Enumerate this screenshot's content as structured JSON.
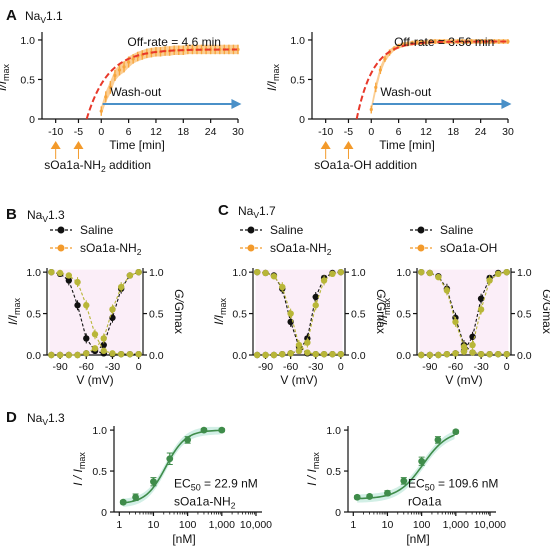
{
  "chart_data": [
    {
      "panel": "A",
      "title": "NaV1.1",
      "type": "line",
      "xlabel": "Time [min]",
      "ylabel": "I/Imax",
      "xticks": [
        -10,
        -5,
        0,
        6,
        12,
        18,
        24,
        30
      ],
      "yticks": [
        0,
        0.5,
        1.0
      ],
      "xlim": [
        -13,
        30
      ],
      "ylim": [
        0,
        1.05
      ],
      "annotation": "Off-rate = 4.6 min",
      "arrow_label": "Wash-out",
      "addition_label": "sOa1a-NH2 addition",
      "addition_times": [
        -10,
        -5
      ],
      "fit": {
        "plateau": 0.88,
        "tau": 4.6
      },
      "series": [
        {
          "name": "data",
          "x": [
            0,
            1,
            2,
            3,
            4,
            5,
            6,
            7,
            8,
            9,
            10,
            11,
            12,
            13,
            14,
            15,
            16,
            17,
            18,
            19,
            20,
            21,
            22,
            23,
            24,
            25,
            26,
            27,
            28,
            29,
            30
          ],
          "y": [
            0.1,
            0.28,
            0.4,
            0.55,
            0.62,
            0.66,
            0.72,
            0.76,
            0.79,
            0.81,
            0.83,
            0.84,
            0.85,
            0.85,
            0.86,
            0.86,
            0.87,
            0.87,
            0.87,
            0.88,
            0.88,
            0.88,
            0.88,
            0.88,
            0.88,
            0.88,
            0.88,
            0.88,
            0.88,
            0.88,
            0.88
          ],
          "err": [
            0.06,
            0.07,
            0.08,
            0.07,
            0.07,
            0.07,
            0.07,
            0.06,
            0.06,
            0.06,
            0.06,
            0.06,
            0.06,
            0.06,
            0.06,
            0.06,
            0.06,
            0.06,
            0.06,
            0.06,
            0.06,
            0.06,
            0.06,
            0.06,
            0.06,
            0.06,
            0.06,
            0.06,
            0.06,
            0.06,
            0.06
          ]
        }
      ]
    },
    {
      "panel": "A",
      "title": "",
      "type": "line",
      "xlabel": "Time [min]",
      "ylabel": "I/Imax",
      "xticks": [
        -10,
        -5,
        0,
        6,
        12,
        18,
        24,
        30
      ],
      "yticks": [
        0,
        0.5,
        1.0
      ],
      "xlim": [
        -13,
        30
      ],
      "ylim": [
        0,
        1.05
      ],
      "annotation": "Off-rate = 3.56 min",
      "arrow_label": "Wash-out",
      "addition_label": "sOa1a-OH addition",
      "addition_times": [
        -10,
        -5
      ],
      "fit": {
        "plateau": 0.98,
        "tau": 3.56
      },
      "series": [
        {
          "name": "data",
          "x": [
            0,
            1,
            2,
            3,
            4,
            5,
            6,
            7,
            8,
            9,
            10,
            11,
            12,
            13,
            14,
            15,
            16,
            17,
            18,
            19,
            20,
            21,
            22,
            23,
            24,
            25,
            26,
            27,
            28,
            29,
            30
          ],
          "y": [
            0.12,
            0.4,
            0.62,
            0.76,
            0.84,
            0.89,
            0.92,
            0.94,
            0.95,
            0.96,
            0.97,
            0.97,
            0.97,
            0.98,
            0.98,
            0.98,
            0.98,
            0.98,
            0.98,
            0.98,
            0.98,
            0.98,
            0.98,
            0.98,
            0.98,
            0.98,
            0.98,
            0.98,
            0.98,
            0.98,
            0.98
          ],
          "err": [
            0.05,
            0.06,
            0.05,
            0.04,
            0.04,
            0.03,
            0.03,
            0.03,
            0.03,
            0.03,
            0.03,
            0.03,
            0.03,
            0.03,
            0.03,
            0.03,
            0.03,
            0.03,
            0.03,
            0.03,
            0.03,
            0.03,
            0.03,
            0.03,
            0.03,
            0.03,
            0.03,
            0.03,
            0.03,
            0.03,
            0.03
          ]
        }
      ]
    },
    {
      "panel": "B",
      "title": "NaV1.3",
      "type": "line",
      "xlabel": "V (mV)",
      "ylabel": "I/Imax",
      "y2label": "G/Gmax",
      "xticks": [
        -90,
        -60,
        -30,
        0
      ],
      "yticks": [
        0,
        0.5,
        1.0
      ],
      "xlim": [
        -105,
        5
      ],
      "ylim": [
        0,
        1.05
      ],
      "series": [
        {
          "name": "Saline",
          "color": "#111111",
          "curve": "inact",
          "v": [
            -100,
            -90,
            -80,
            -70,
            -60,
            -50,
            -40,
            -30,
            -20,
            -10,
            0
          ],
          "y": [
            1.0,
            0.98,
            0.9,
            0.6,
            0.2,
            0.05,
            0.02,
            0.01,
            0.01,
            0.01,
            0.01
          ]
        },
        {
          "name": "Saline",
          "color": "#111111",
          "curve": "act",
          "v": [
            -100,
            -90,
            -80,
            -70,
            -60,
            -50,
            -40,
            -30,
            -20,
            -10,
            0
          ],
          "y": [
            0.0,
            0.0,
            0.0,
            0.0,
            0.02,
            0.05,
            0.12,
            0.45,
            0.8,
            0.96,
            1.0
          ]
        },
        {
          "name": "sOa1a-NH2",
          "color": "#b8b638",
          "curve": "inact",
          "v": [
            -100,
            -90,
            -80,
            -70,
            -60,
            -50,
            -40,
            -30,
            -20,
            -10,
            0
          ],
          "y": [
            1.0,
            0.99,
            0.96,
            0.88,
            0.6,
            0.25,
            0.05,
            0.02,
            0.01,
            0.01,
            0.01
          ]
        },
        {
          "name": "sOa1a-NH2",
          "color": "#b8b638",
          "curve": "act",
          "v": [
            -100,
            -90,
            -80,
            -70,
            -60,
            -50,
            -40,
            -30,
            -20,
            -10,
            0
          ],
          "y": [
            0.0,
            0.0,
            0.0,
            0.0,
            0.02,
            0.08,
            0.2,
            0.55,
            0.82,
            0.96,
            1.0
          ]
        }
      ]
    },
    {
      "panel": "C",
      "title": "NaV1.7",
      "type": "line",
      "xlabel": "V (mV)",
      "ylabel": "I/Imax",
      "y2label": "G/Gmax",
      "xticks": [
        -90,
        -60,
        -30,
        0
      ],
      "yticks": [
        0,
        0.5,
        1.0
      ],
      "xlim": [
        -105,
        5
      ],
      "ylim": [
        0,
        1.05
      ],
      "series": [
        {
          "name": "Saline",
          "color": "#111111",
          "curve": "inact",
          "v": [
            -100,
            -90,
            -80,
            -70,
            -60,
            -50,
            -40,
            -30,
            -20,
            -10,
            0
          ],
          "y": [
            1.0,
            0.99,
            0.96,
            0.8,
            0.4,
            0.1,
            0.02,
            0.01,
            0.01,
            0.01,
            0.01
          ]
        },
        {
          "name": "Saline",
          "color": "#111111",
          "curve": "act",
          "v": [
            -100,
            -90,
            -80,
            -70,
            -60,
            -50,
            -40,
            -30,
            -20,
            -10,
            0
          ],
          "y": [
            0.0,
            0.0,
            0.0,
            0.01,
            0.02,
            0.05,
            0.2,
            0.7,
            0.93,
            0.99,
            1.0
          ]
        },
        {
          "name": "sOa1a-NH2",
          "color": "#b8b638",
          "curve": "inact",
          "v": [
            -100,
            -90,
            -80,
            -70,
            -60,
            -50,
            -40,
            -30,
            -20,
            -10,
            0
          ],
          "y": [
            1.0,
            0.99,
            0.95,
            0.82,
            0.5,
            0.12,
            0.03,
            0.01,
            0.01,
            0.01,
            0.01
          ]
        },
        {
          "name": "sOa1a-NH2",
          "color": "#b8b638",
          "curve": "act",
          "v": [
            -100,
            -90,
            -80,
            -70,
            -60,
            -50,
            -40,
            -30,
            -20,
            -10,
            0
          ],
          "y": [
            0.0,
            0.0,
            0.0,
            0.01,
            0.02,
            0.05,
            0.15,
            0.6,
            0.9,
            0.98,
            1.0
          ]
        }
      ]
    },
    {
      "panel": "C",
      "title": "",
      "type": "line",
      "xlabel": "V (mV)",
      "ylabel": "I/Imax",
      "y2label": "G/Gmax",
      "xticks": [
        -90,
        -60,
        -30,
        0
      ],
      "yticks": [
        0,
        0.5,
        1.0
      ],
      "xlim": [
        -105,
        5
      ],
      "ylim": [
        0,
        1.05
      ],
      "series": [
        {
          "name": "Saline",
          "color": "#111111",
          "curve": "inact",
          "v": [
            -100,
            -90,
            -80,
            -70,
            -60,
            -50,
            -40,
            -30,
            -20,
            -10,
            0
          ],
          "y": [
            1.0,
            0.99,
            0.95,
            0.8,
            0.45,
            0.12,
            0.03,
            0.01,
            0.01,
            0.01,
            0.01
          ]
        },
        {
          "name": "Saline",
          "color": "#111111",
          "curve": "act",
          "v": [
            -100,
            -90,
            -80,
            -70,
            -60,
            -50,
            -40,
            -30,
            -20,
            -10,
            0
          ],
          "y": [
            0.0,
            0.0,
            0.0,
            0.01,
            0.02,
            0.05,
            0.22,
            0.68,
            0.93,
            0.99,
            1.0
          ]
        },
        {
          "name": "sOa1a-OH",
          "color": "#b8b638",
          "curve": "inact",
          "v": [
            -100,
            -90,
            -80,
            -70,
            -60,
            -50,
            -40,
            -30,
            -20,
            -10,
            0
          ],
          "y": [
            1.0,
            0.99,
            0.94,
            0.78,
            0.4,
            0.1,
            0.03,
            0.01,
            0.01,
            0.01,
            0.01
          ]
        },
        {
          "name": "sOa1a-OH",
          "color": "#b8b638",
          "curve": "act",
          "v": [
            -100,
            -90,
            -80,
            -70,
            -60,
            -50,
            -40,
            -30,
            -20,
            -10,
            0
          ],
          "y": [
            0.0,
            0.0,
            0.0,
            0.01,
            0.02,
            0.04,
            0.12,
            0.55,
            0.9,
            0.98,
            1.0
          ]
        }
      ]
    },
    {
      "panel": "D",
      "title": "NaV1.3",
      "type": "scatter",
      "xlabel": "[nM]",
      "ylabel": "I / Imax",
      "xscale": "log",
      "xticks": [
        1,
        10,
        100,
        1000,
        10000
      ],
      "xticklabels": [
        "1",
        "10",
        "100",
        "1,000",
        "10,000"
      ],
      "yticks": [
        0,
        0.5,
        1.0
      ],
      "xlim": [
        0.7,
        15000
      ],
      "ylim": [
        0,
        1.05
      ],
      "ec50": 22.9,
      "hill": 1.5,
      "ec50_label": "EC50 = 22.9 nM",
      "compound": "sOa1a-NH2",
      "series": [
        {
          "name": "data",
          "x": [
            1.3,
            3,
            10,
            30,
            100,
            300,
            1000
          ],
          "y": [
            0.12,
            0.18,
            0.37,
            0.65,
            0.88,
            1.0,
            1.0
          ],
          "err": [
            0.02,
            0.04,
            0.05,
            0.07,
            0.04,
            0.02,
            0.02
          ]
        }
      ]
    },
    {
      "panel": "D",
      "title": "",
      "type": "scatter",
      "xlabel": "[nM]",
      "ylabel": "I / Imax",
      "xscale": "log",
      "xticks": [
        1,
        10,
        100,
        1000,
        10000
      ],
      "xticklabels": [
        "1",
        "10",
        "100",
        "1,000",
        "10,000"
      ],
      "yticks": [
        0,
        0.5,
        1.0
      ],
      "xlim": [
        0.7,
        15000
      ],
      "ylim": [
        0,
        1.05
      ],
      "ec50": 109.6,
      "hill": 1.2,
      "ec50_label": "EC50 = 109.6 nM",
      "compound": "rOa1a",
      "series": [
        {
          "name": "data",
          "x": [
            1.3,
            3,
            10,
            30,
            100,
            300,
            1000
          ],
          "y": [
            0.18,
            0.19,
            0.23,
            0.38,
            0.62,
            0.88,
            0.98
          ],
          "err": [
            0.02,
            0.02,
            0.03,
            0.04,
            0.05,
            0.04,
            0.02
          ]
        }
      ]
    }
  ],
  "labels": {
    "panelA": "A",
    "panelB": "B",
    "panelC": "C",
    "panelD": "D",
    "nav11": "Na",
    "nav11sub": "V",
    "nav11num": "1.1",
    "nav13": "Na",
    "nav13sub": "V",
    "nav13num": "1.3",
    "nav17": "Na",
    "nav17sub": "V",
    "nav17num": "1.7",
    "navD": "Na",
    "navDsub": "V",
    "navDnum": "1.3",
    "saline": "Saline",
    "nh2": "sOa1a-NH",
    "nh2sub": "2",
    "oh": "sOa1a-OH"
  },
  "colors": {
    "fit_red": "#e8382a",
    "band_orange": "#f7a53d",
    "wash_blue": "#4a90c8",
    "triangle": "#f39a2b",
    "saline": "#111111",
    "toxin": "#b8b638",
    "toxin_legend": "#f39a2b",
    "dr_green": "#3f8c4a",
    "dr_band": "#bfe8dc",
    "vband": "#f7d9f0"
  }
}
